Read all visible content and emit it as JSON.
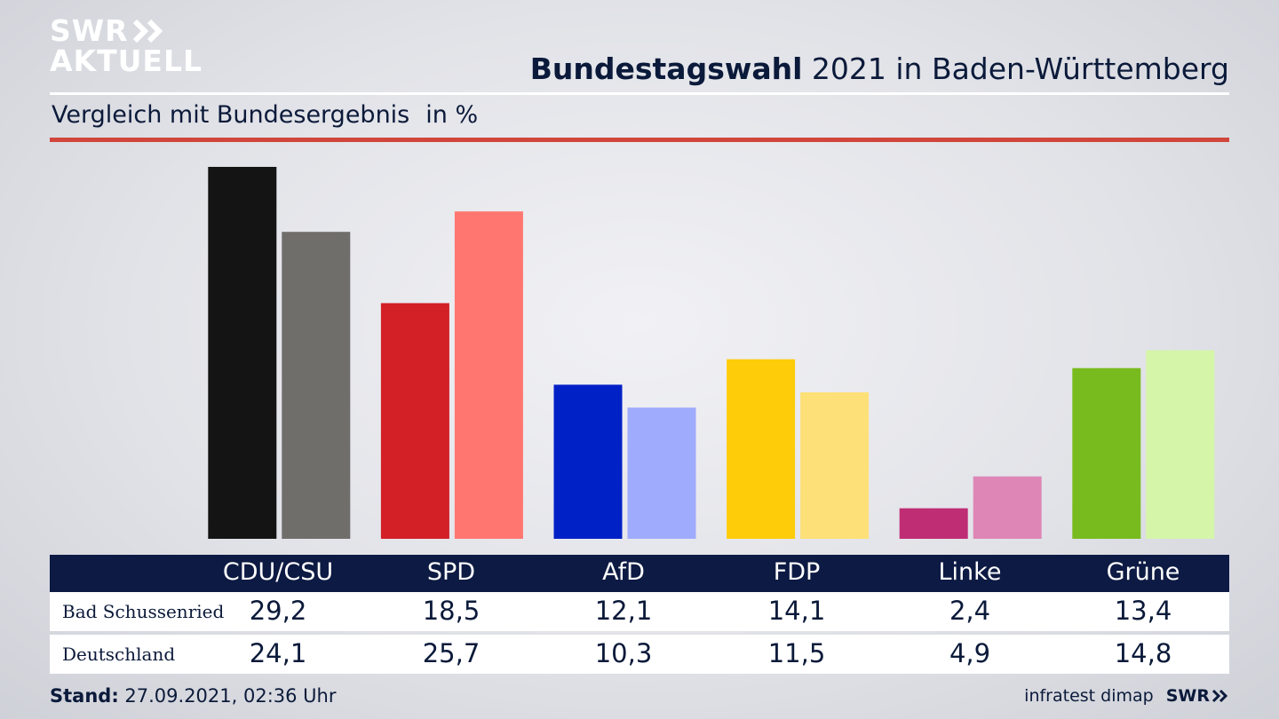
{
  "logo": {
    "line1": "SWR",
    "line2": "AKTUELL"
  },
  "header": {
    "title_bold": "Bundestagswahl",
    "title_rest": " 2021 in Baden-Württemberg",
    "subtitle": "Vergleich mit Bundesergebnis",
    "unit": "in %"
  },
  "chart_data": {
    "type": "bar",
    "categories": [
      "CDU/CSU",
      "SPD",
      "AfD",
      "FDP",
      "Linke",
      "Grüne"
    ],
    "series": [
      {
        "name": "Bad Schussenried",
        "values": [
          29.2,
          18.5,
          12.1,
          14.1,
          2.4,
          13.4
        ],
        "colors": [
          "#141414",
          "#d31f26",
          "#0021c6",
          "#ffcc0a",
          "#bf2d74",
          "#78bb1e"
        ]
      },
      {
        "name": "Deutschland",
        "values": [
          24.1,
          25.7,
          10.3,
          11.5,
          4.9,
          14.8
        ],
        "colors": [
          "#706e6b",
          "#ff7671",
          "#9fabfc",
          "#fde077",
          "#de87b7",
          "#d5f5a9"
        ]
      }
    ],
    "ylim": [
      0,
      29.2
    ],
    "grid": false,
    "xlabel": "",
    "ylabel": ""
  },
  "table": {
    "headers": [
      "CDU/CSU",
      "SPD",
      "AfD",
      "FDP",
      "Linke",
      "Grüne"
    ],
    "rows": [
      {
        "label": "Bad Schussenried",
        "values": [
          "29,2",
          "18,5",
          "12,1",
          "14,1",
          "2,4",
          "13,4"
        ]
      },
      {
        "label": "Deutschland",
        "values": [
          "24,1",
          "25,7",
          "10,3",
          "11,5",
          "4,9",
          "14,8"
        ]
      }
    ]
  },
  "footer": {
    "stand_label": "Stand:",
    "stand_value": " 27.09.2021, 02:36 Uhr",
    "source": "infratest dimap",
    "brand": "SWR"
  }
}
